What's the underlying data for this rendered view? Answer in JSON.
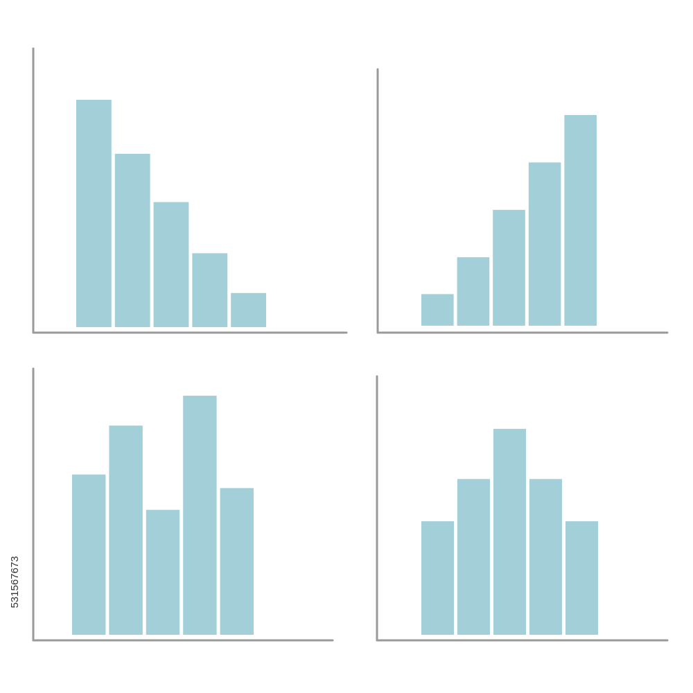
{
  "chart_data": [
    {
      "type": "bar",
      "categories": [
        null,
        null,
        null,
        null,
        null
      ],
      "values": [
        80,
        61,
        44,
        26,
        12
      ],
      "color": "#a3cfd8",
      "ylim": [
        0,
        100
      ]
    },
    {
      "type": "bar",
      "categories": [
        null,
        null,
        null,
        null,
        null
      ],
      "values": [
        12,
        26,
        44,
        62,
        80
      ],
      "color": "#a3cfd8",
      "ylim": [
        0,
        100
      ]
    },
    {
      "type": "bar",
      "categories": [
        null,
        null,
        null,
        null,
        null
      ],
      "values": [
        59,
        77,
        46,
        88,
        54
      ],
      "color": "#a3cfd8",
      "ylim": [
        0,
        100
      ]
    },
    {
      "type": "bar",
      "categories": [
        null,
        null,
        null,
        null,
        null
      ],
      "values": [
        43,
        59,
        78,
        59,
        43
      ],
      "color": "#a3cfd8",
      "ylim": [
        0,
        100
      ]
    }
  ],
  "watermark_id": "531567673"
}
